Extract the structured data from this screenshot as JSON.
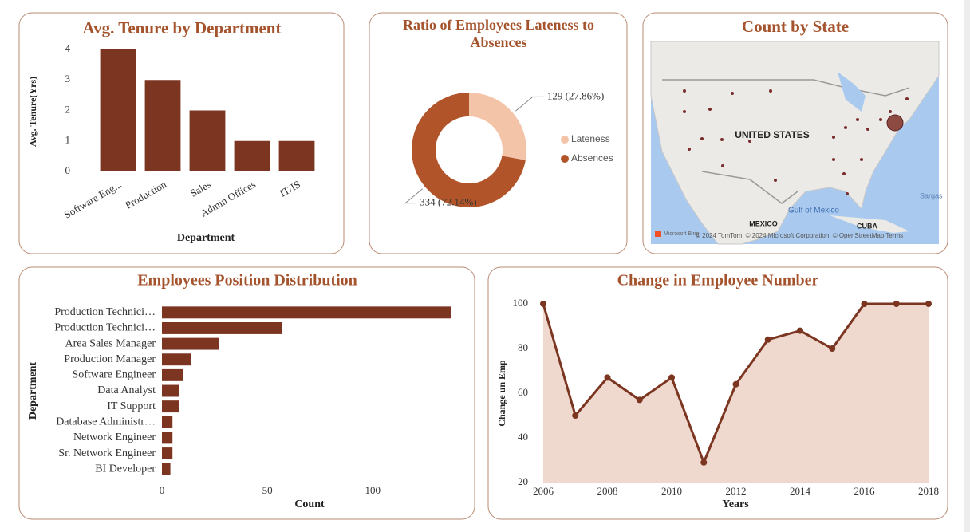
{
  "chart_data": [
    {
      "type": "bar",
      "title": "Avg. Tenure by Department",
      "x_label": "Department",
      "y_label": "Avg. Tenure(Yrs)",
      "categories": [
        "Software Eng...",
        "Production",
        "Sales",
        "Admin Offices",
        "IT/IS"
      ],
      "values": [
        4,
        3,
        2,
        1,
        1
      ],
      "color": "#7b3520",
      "ylim": [
        0,
        4
      ],
      "yticks": [
        0,
        1,
        2,
        3,
        4
      ]
    },
    {
      "type": "donut",
      "title": "Ratio of Employees Lateness to Absences",
      "categories": [
        "Lateness",
        "Absences"
      ],
      "values": [
        129,
        334
      ],
      "value_labels": [
        "129 (27.86%)",
        "334 (72.14%)"
      ],
      "colors": [
        "#f4c4a9",
        "#b1542a"
      ],
      "legend": "right"
    },
    {
      "type": "map",
      "title": "Count by State",
      "labels": [
        "UNITED STATES",
        "Gulf of Mexico",
        "MEXICO",
        "CUBA",
        "Sargas",
        "Microsoft Bing",
        "© 2024 TomTom, © 2024 Microsoft Corporation, © OpenStreetMap   Terms"
      ]
    },
    {
      "type": "hbar",
      "title": "Employees Position Distribution",
      "x_label": "Count",
      "y_label": "Department",
      "categories": [
        "Production Technici…",
        "Production Technici…",
        "Area Sales Manager",
        "Production Manager",
        "Software Engineer",
        "Data Analyst",
        "IT Support",
        "Database Administr…",
        "Network Engineer",
        "Sr. Network Engineer",
        "BI Developer"
      ],
      "values": [
        137,
        57,
        27,
        14,
        10,
        8,
        8,
        5,
        5,
        5,
        4
      ],
      "color": "#7b3520",
      "xlim": [
        0,
        140
      ],
      "xticks": [
        0,
        50,
        100
      ]
    },
    {
      "type": "area-line",
      "title": "Change in Employee Number",
      "x_label": "Years",
      "y_label": "Change un Emp",
      "x": [
        2006,
        2007,
        2008,
        2009,
        2010,
        2011,
        2012,
        2013,
        2014,
        2015,
        2016,
        2017,
        2018
      ],
      "values": [
        100,
        50,
        67,
        57,
        67,
        29,
        64,
        84,
        88,
        80,
        100,
        100,
        100
      ],
      "color": "#7b3520",
      "fill": "#efd9cf",
      "xlim": [
        2006,
        2018
      ],
      "xticks": [
        2006,
        2008,
        2010,
        2012,
        2014,
        2016,
        2018
      ],
      "ylim": [
        20,
        100
      ],
      "yticks": [
        20,
        40,
        60,
        80,
        100
      ]
    }
  ]
}
